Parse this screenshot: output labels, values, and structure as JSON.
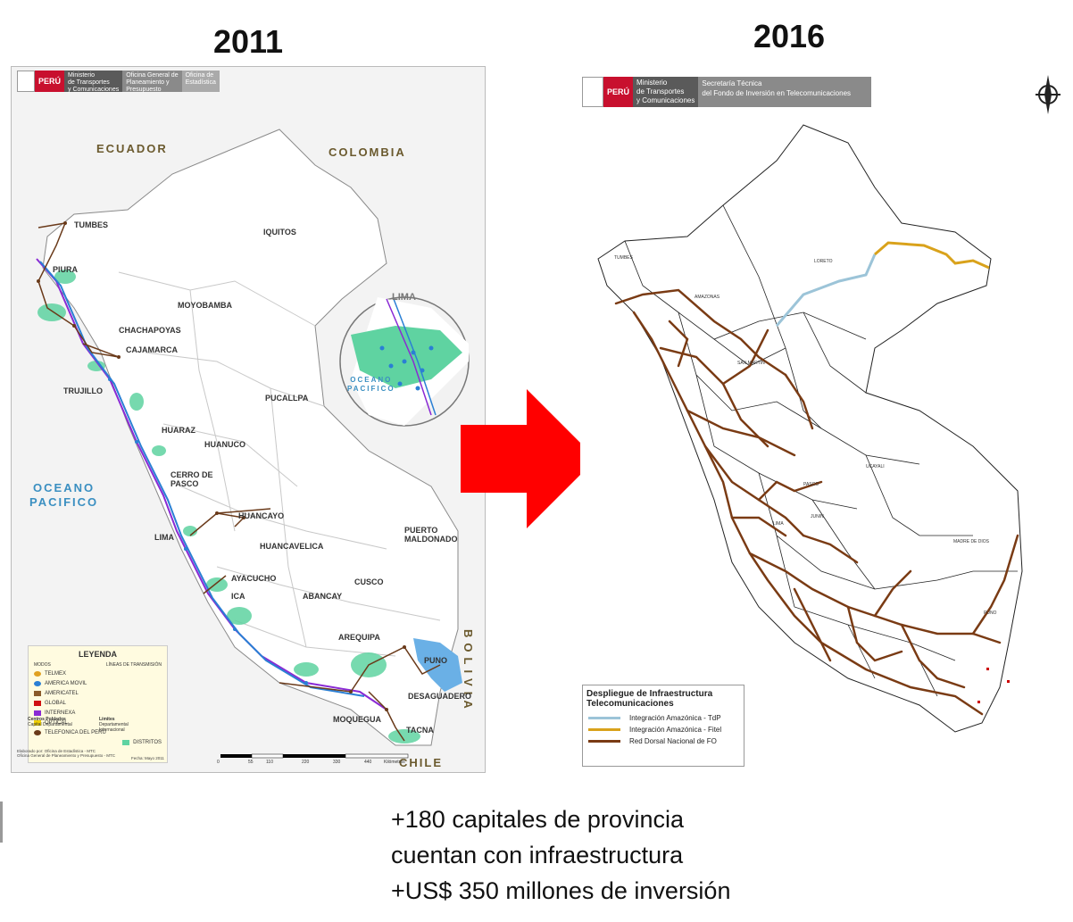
{
  "years": {
    "left": "2011",
    "right": "2016"
  },
  "map_2011": {
    "header": {
      "peru": "PERÚ",
      "ministry": "Ministerio\nde Transportes\ny Comunicaciones",
      "office": "Oficina General de\nPlaneamiento y\nPresupuesto",
      "stats": "Oficina de\nEstadística"
    },
    "countries": [
      "ECUADOR",
      "COLOMBIA",
      "BOLIVIA",
      "CHILE"
    ],
    "ocean": "OCEANO\nPACIFICO",
    "inset": {
      "city": "LIMA",
      "ocean": "OCEANO\nPACIFICO"
    },
    "cities": [
      "TUMBES",
      "PIURA",
      "IQUITOS",
      "MOYOBAMBA",
      "CHACHAPOYAS",
      "CAJAMARCA",
      "TRUJILLO",
      "PUCALLPA",
      "HUARAZ",
      "HUANUCO",
      "CERRO DE PASCO",
      "HUANCAYO",
      "LIMA",
      "HUANCAVELICA",
      "PUERTO MALDONADO",
      "AYACUCHO",
      "CUSCO",
      "ABANCAY",
      "ICA",
      "AREQUIPA",
      "PUNO",
      "DESAGUADERO",
      "MOQUEGUA",
      "TACNA"
    ],
    "legend": {
      "title": "LEYENDA",
      "col_modes": "MODOS",
      "col_lines": "LÍNEAS DE TRANSMISIÓN",
      "items": [
        {
          "label": "TELMEX",
          "color": "#e0a020"
        },
        {
          "label": "AMERICA MOVIL",
          "color": "#2a7fd4"
        },
        {
          "label": "AMERICATEL",
          "color": "#8a5a2a"
        },
        {
          "label": "GLOBAL",
          "color": "#d01010"
        },
        {
          "label": "INTERNEXA",
          "color": "#8a2ad4"
        },
        {
          "label": "OPTICAL",
          "color": "#f0d000"
        },
        {
          "label": "TELEFONICA DEL PERÚ",
          "color": "#6a3a1a"
        }
      ],
      "distritos": "DISTRITOS",
      "centros": "Centros Poblados",
      "capital": "Capital Departamental",
      "limites": "Límites",
      "departamental": "Departamental",
      "internacional": "Internacional",
      "scale": [
        "0",
        "55",
        "110",
        "220",
        "330",
        "440"
      ],
      "scale_unit": "Kilómetros",
      "credit": "Elaborado por: Oficina de Estadística - MTC\nOficina General de Planeamiento y Presupuesto - MTC",
      "date": "Fecha: Mayo 2011"
    }
  },
  "map_2016": {
    "header": {
      "peru": "PERÚ",
      "ministry": "Ministerio\nde Transportes\ny Comunicaciones",
      "secretaria": "Secretaría Técnica\ndel Fondo de Inversión en Telecomunicaciones"
    },
    "regions": [
      "TUMBES",
      "LORETO",
      "AMAZONAS",
      "SAN MARTIN",
      "UCAYALI",
      "MADRE DE DIOS",
      "PUNO",
      "JUNIN",
      "PASCO",
      "LIMA"
    ],
    "legend": {
      "title": "Despliegue de Infraestructura Telecomunicaciones",
      "items": [
        {
          "label": "Integración Amazónica - TdP",
          "color": "#9cc4d8"
        },
        {
          "label": "Integración Amazónica - Fitel",
          "color": "#d9a21b"
        },
        {
          "label": "Red Dorsal Nacional de FO",
          "color": "#7a3b14"
        }
      ]
    }
  },
  "arrow_color": "#ff0000",
  "caption": [
    "+180 capitales de provincia",
    "cuentan con infraestructura",
    "+US$ 350 millones de inversión"
  ]
}
